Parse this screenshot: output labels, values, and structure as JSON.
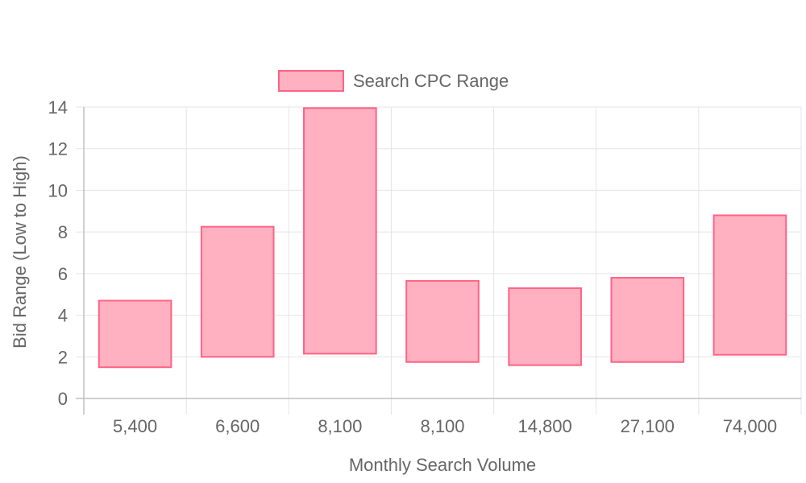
{
  "chart_data": {
    "type": "bar",
    "style": "floating-range",
    "legend": {
      "position": "top",
      "entries": [
        "Search CPC Range"
      ]
    },
    "xlabel": "Monthly Search Volume",
    "ylabel": "Bid Range (Low to High)",
    "categories": [
      "5,400",
      "6,600",
      "8,100",
      "8,100",
      "14,800",
      "27,100",
      "74,000"
    ],
    "series": [
      {
        "name": "Search CPC Range",
        "ranges": [
          [
            1.5,
            4.7
          ],
          [
            2.0,
            8.25
          ],
          [
            2.15,
            13.95
          ],
          [
            1.75,
            5.65
          ],
          [
            1.6,
            5.3
          ],
          [
            1.75,
            5.8
          ],
          [
            2.1,
            8.8
          ]
        ]
      }
    ],
    "ylim": [
      0,
      14
    ],
    "yticks": [
      0,
      2,
      4,
      6,
      8,
      10,
      12,
      14
    ],
    "grid": true,
    "colors": {
      "bar_fill": "#ffb1c1",
      "bar_border": "#ff6384",
      "grid": "#e5e5e5",
      "axis": "#c0c0c0",
      "text": "#666666"
    }
  }
}
